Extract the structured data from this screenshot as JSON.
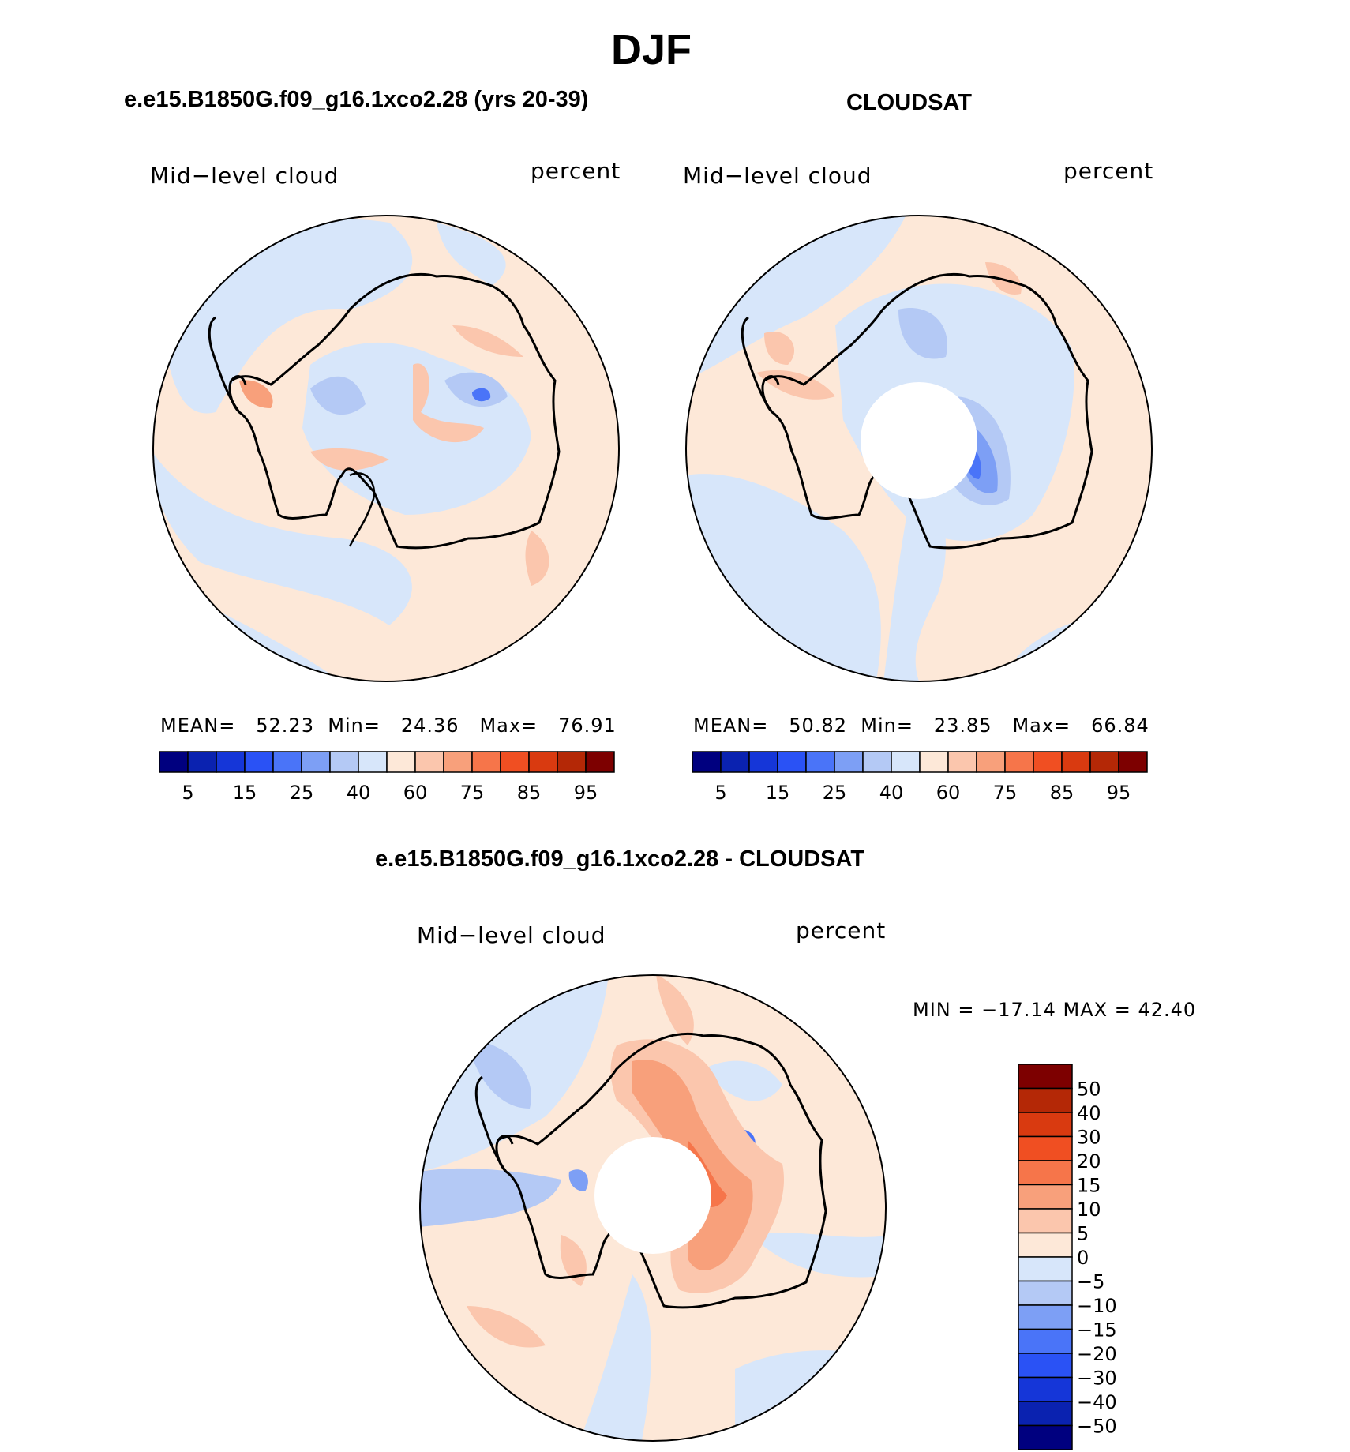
{
  "page": {
    "title": "DJF"
  },
  "panels": [
    {
      "id": "model",
      "subtitle": "e.e15.B1850G.f09_g16.1xco2.28 (yrs 20-39)",
      "variable": "Mid−level cloud",
      "units": "percent",
      "stats": {
        "mean_label": "MEAN=",
        "mean": "52.23",
        "min_label": "Min=",
        "min": "24.36",
        "max_label": "Max=",
        "max": "76.91"
      }
    },
    {
      "id": "obs",
      "subtitle": "CLOUDSAT",
      "variable": "Mid−level cloud",
      "units": "percent",
      "stats": {
        "mean_label": "MEAN=",
        "mean": "50.82",
        "min_label": "Min=",
        "min": "23.85",
        "max_label": "Max=",
        "max": "66.84"
      }
    },
    {
      "id": "diff",
      "subtitle": "e.e15.B1850G.f09_g16.1xco2.28 - CLOUDSAT",
      "variable": "Mid−level cloud",
      "units": "percent",
      "stats_line": "MIN = −17.14  MAX =   42.40"
    }
  ],
  "chart_data": [
    {
      "type": "heatmap",
      "projection": "south polar stereographic",
      "title": "e.e15.B1850G.f09_g16.1xco2.28 (yrs 20-39)",
      "field": "Mid-level cloud",
      "units": "percent",
      "mean": 52.23,
      "min": 24.36,
      "max": 76.91,
      "colorbar": {
        "colors": [
          "#00007f",
          "#0a22b0",
          "#1536d8",
          "#2a52f5",
          "#4a74f8",
          "#7d9ff5",
          "#b4c9f5",
          "#d7e6fa",
          "#fde8d8",
          "#fbc6ad",
          "#f8a07b",
          "#f6754a",
          "#f04f22",
          "#d93a10",
          "#b42806",
          "#7d0000"
        ],
        "tick_labels": [
          "5",
          "15",
          "25",
          "40",
          "60",
          "75",
          "85",
          "95"
        ]
      }
    },
    {
      "type": "heatmap",
      "projection": "south polar stereographic",
      "title": "CLOUDSAT",
      "field": "Mid-level cloud",
      "units": "percent",
      "mean": 50.82,
      "min": 23.85,
      "max": 66.84,
      "colorbar": {
        "colors": [
          "#00007f",
          "#0a22b0",
          "#1536d8",
          "#2a52f5",
          "#4a74f8",
          "#7d9ff5",
          "#b4c9f5",
          "#d7e6fa",
          "#fde8d8",
          "#fbc6ad",
          "#f8a07b",
          "#f6754a",
          "#f04f22",
          "#d93a10",
          "#b42806",
          "#7d0000"
        ],
        "tick_labels": [
          "5",
          "15",
          "25",
          "40",
          "60",
          "75",
          "85",
          "95"
        ]
      }
    },
    {
      "type": "heatmap",
      "projection": "south polar stereographic",
      "title": "e.e15.B1850G.f09_g16.1xco2.28 - CLOUDSAT",
      "field": "Mid-level cloud",
      "units": "percent",
      "min": -17.14,
      "max": 42.4,
      "colorbar": {
        "colors": [
          "#00007f",
          "#0a22b0",
          "#1536d8",
          "#2a52f5",
          "#4a74f8",
          "#7d9ff5",
          "#b4c9f5",
          "#d7e6fa",
          "#fde8d8",
          "#fbc6ad",
          "#f8a07b",
          "#f6754a",
          "#f04f22",
          "#d93a10",
          "#b42806",
          "#7d0000"
        ],
        "tick_labels": [
          "50",
          "40",
          "30",
          "20",
          "15",
          "10",
          "5",
          "0",
          "−5",
          "−10",
          "−15",
          "−20",
          "−30",
          "−40",
          "−50"
        ]
      }
    }
  ]
}
